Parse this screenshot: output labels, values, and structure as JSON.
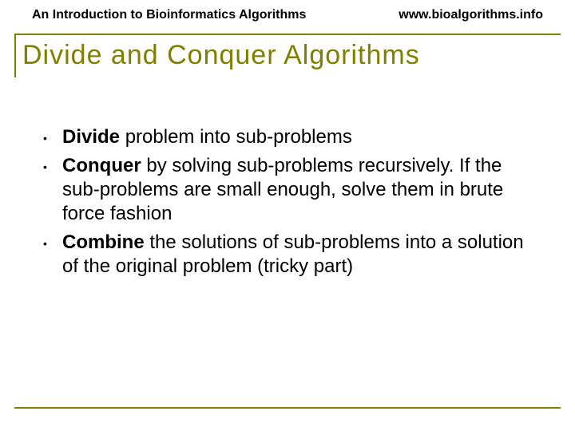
{
  "header": {
    "left": "An Introduction to Bioinformatics Algorithms",
    "right": "www.bioalgorithms.info"
  },
  "title": "Divide and Conquer Algorithms",
  "bullets": [
    {
      "bold": "Divide",
      "rest": " problem into sub-problems"
    },
    {
      "bold": "Conquer",
      "rest": " by solving sub-problems recursively.  If the sub-problems are small enough, solve them in brute force fashion"
    },
    {
      "bold": "Combine",
      "rest": " the solutions of sub-problems into a solution of the original problem (tricky part)"
    }
  ],
  "colors": {
    "accent": "#808000",
    "text": "#000000",
    "background": "#ffffff"
  },
  "typography": {
    "header_fontsize": 16,
    "title_fontsize": 34,
    "body_fontsize": 24
  }
}
